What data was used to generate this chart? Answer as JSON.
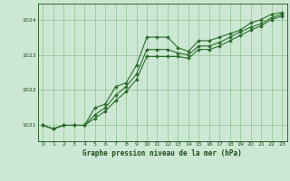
{
  "title": "Graphe pression niveau de la mer (hPa)",
  "bg_color": "#cce8d4",
  "grid_color": "#90c090",
  "line_color": "#2d6e2d",
  "text_color": "#1a4d1a",
  "hours": [
    0,
    1,
    2,
    3,
    4,
    5,
    6,
    7,
    8,
    9,
    10,
    11,
    12,
    13,
    14,
    15,
    16,
    17,
    18,
    19,
    20,
    21,
    22,
    23
  ],
  "line1": [
    1021.0,
    1020.9,
    1021.0,
    1021.0,
    1021.0,
    1021.5,
    1021.6,
    1022.1,
    1022.2,
    1022.7,
    1023.5,
    1023.5,
    1023.5,
    1023.2,
    1023.1,
    1023.4,
    1023.4,
    1023.5,
    1023.6,
    1023.7,
    1023.9,
    1024.0,
    1024.15,
    1024.2
  ],
  "line2": [
    1021.0,
    1020.9,
    1021.0,
    1021.0,
    1021.0,
    1021.3,
    1021.5,
    1021.85,
    1022.1,
    1022.45,
    1023.15,
    1023.15,
    1023.15,
    1023.05,
    1023.0,
    1023.25,
    1023.25,
    1023.35,
    1023.5,
    1023.65,
    1023.78,
    1023.88,
    1024.05,
    1024.15
  ],
  "line3": [
    1021.0,
    1020.9,
    1021.0,
    1021.0,
    1021.0,
    1021.2,
    1021.4,
    1021.7,
    1021.95,
    1022.3,
    1022.95,
    1022.95,
    1022.95,
    1022.95,
    1022.9,
    1023.15,
    1023.15,
    1023.25,
    1023.4,
    1023.55,
    1023.7,
    1023.82,
    1024.0,
    1024.1
  ],
  "ylim": [
    1020.55,
    1024.45
  ],
  "yticks": [
    1021,
    1022,
    1023,
    1024
  ],
  "xlim": [
    -0.5,
    23.5
  ],
  "xticks": [
    0,
    1,
    2,
    3,
    4,
    5,
    6,
    7,
    8,
    9,
    10,
    11,
    12,
    13,
    14,
    15,
    16,
    17,
    18,
    19,
    20,
    21,
    22,
    23
  ]
}
